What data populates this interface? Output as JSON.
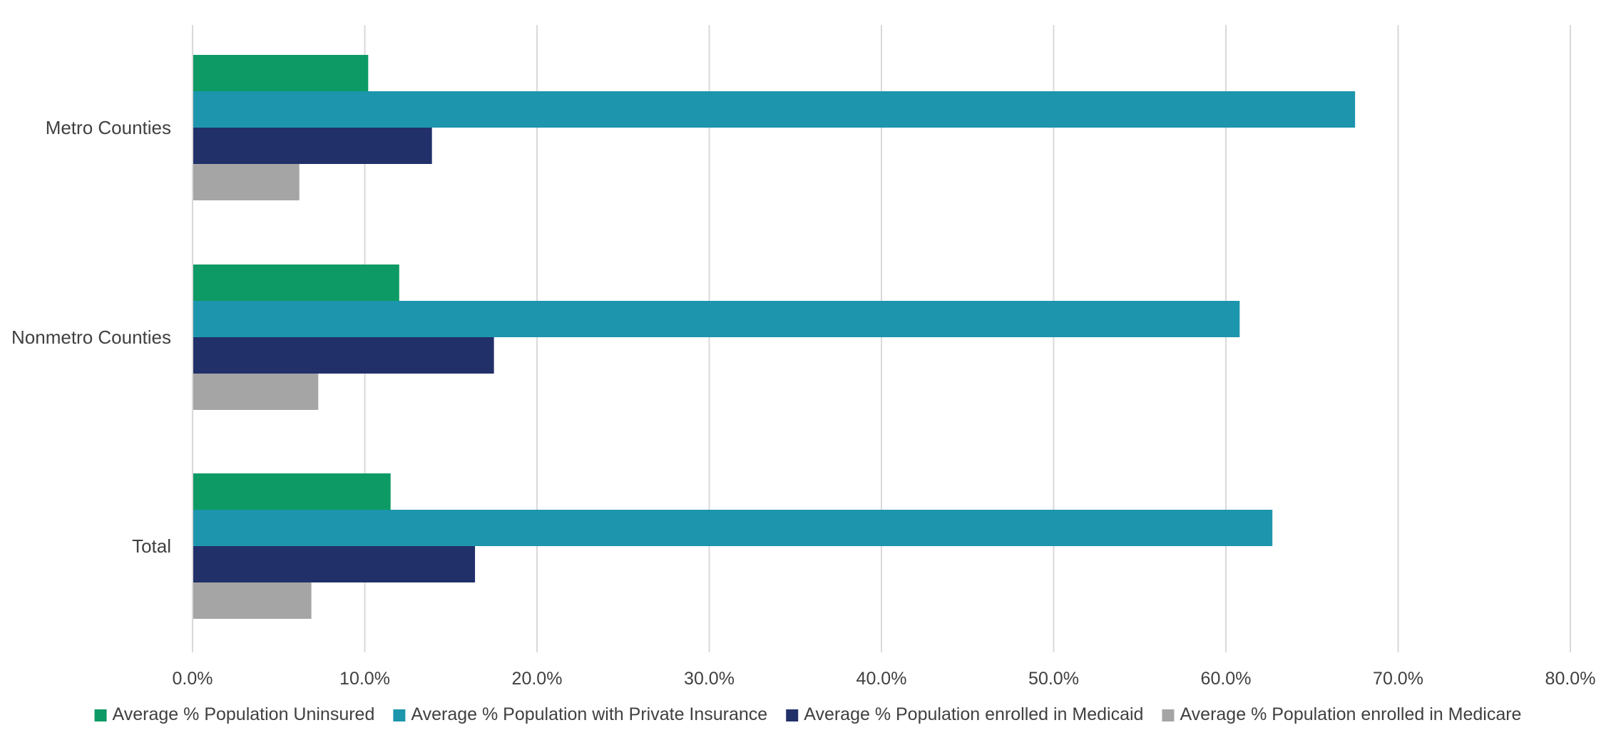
{
  "chart_data": {
    "type": "bar",
    "orientation": "horizontal",
    "categories": [
      "Metro Counties",
      "Nonmetro Counties",
      "Total"
    ],
    "series": [
      {
        "name": "Average % Population Uninsured",
        "color": "#0e9a65",
        "values": [
          10.2,
          12.0,
          11.5
        ]
      },
      {
        "name": "Average % Population with Private Insurance",
        "color": "#1d95ad",
        "values": [
          67.5,
          60.8,
          62.7
        ]
      },
      {
        "name": "Average % Population enrolled in Medicaid",
        "color": "#22306a",
        "values": [
          13.9,
          17.5,
          16.4
        ]
      },
      {
        "name": "Average % Population enrolled in Medicare",
        "color": "#a5a5a5",
        "values": [
          6.2,
          7.3,
          6.9
        ]
      }
    ],
    "xlim": [
      0,
      80
    ],
    "xticks": [
      0,
      10,
      20,
      30,
      40,
      50,
      60,
      70,
      80
    ],
    "xtick_labels": [
      "0.0%",
      "10.0%",
      "20.0%",
      "30.0%",
      "40.0%",
      "50.0%",
      "60.0%",
      "70.0%",
      "80.0%"
    ],
    "title": "",
    "xlabel": "",
    "ylabel": "",
    "grid": "vertical",
    "legend_position": "bottom"
  }
}
